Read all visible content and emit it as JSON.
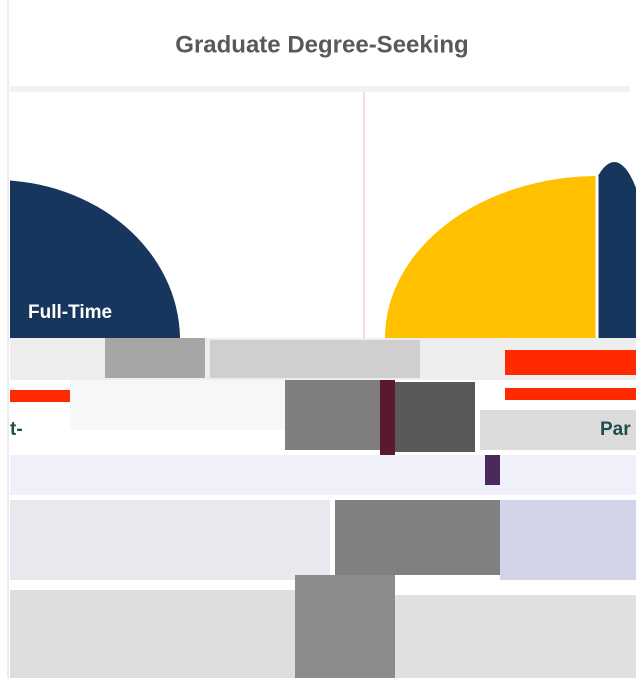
{
  "title": "Graduate Degree-Seeking",
  "labels": {
    "left": "Full-Time",
    "left_lower": "t-",
    "right_lower": "Par"
  }
}
